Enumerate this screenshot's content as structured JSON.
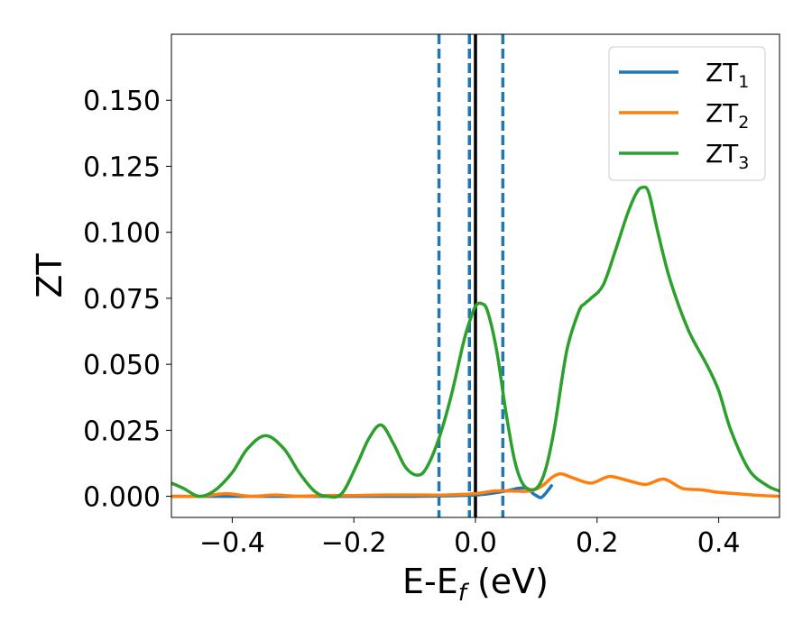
{
  "chart_data": {
    "type": "line",
    "title": "",
    "xlabel": {
      "main": "E-E",
      "sub": "f",
      "tail": " (eV)"
    },
    "ylabel": "ZT",
    "xlim": [
      -0.5,
      0.5
    ],
    "ylim": [
      -0.008,
      0.175
    ],
    "grid": false,
    "legend_position": "top-right",
    "x_ticks": [
      -0.4,
      -0.2,
      0.0,
      0.2,
      0.4
    ],
    "x_tick_labels": [
      "−0.4",
      "−0.2",
      "0.0",
      "0.2",
      "0.4"
    ],
    "y_ticks": [
      0.0,
      0.025,
      0.05,
      0.075,
      0.1,
      0.125,
      0.15
    ],
    "y_tick_labels": [
      "0.000",
      "0.025",
      "0.050",
      "0.075",
      "0.100",
      "0.125",
      "0.150"
    ],
    "vertical_lines": [
      {
        "x": -0.06,
        "style": "dashed",
        "color": "#1f77b4"
      },
      {
        "x": -0.01,
        "style": "dashed",
        "color": "#1f77b4"
      },
      {
        "x": 0.045,
        "style": "dashed",
        "color": "#1f77b4"
      },
      {
        "x": 0.0,
        "style": "solid",
        "color": "#000000"
      }
    ],
    "series": [
      {
        "name": "ZT",
        "name_sub": "1",
        "color": "#1f77b4",
        "x": [
          -0.5,
          -0.45,
          -0.4,
          -0.3,
          -0.2,
          -0.1,
          0.0,
          0.05,
          0.07,
          0.085,
          0.095,
          0.102,
          0.108,
          0.115,
          0.125
        ],
        "y": [
          0.0,
          0.0,
          0.0,
          0.0,
          0.0,
          0.0,
          0.0005,
          0.002,
          0.003,
          0.003,
          0.001,
          0.0,
          -0.0005,
          0.001,
          0.004
        ]
      },
      {
        "name": "ZT",
        "name_sub": "2",
        "color": "#ff7f0e",
        "x": [
          -0.5,
          -0.45,
          -0.41,
          -0.37,
          -0.33,
          -0.29,
          -0.25,
          -0.2,
          -0.15,
          -0.1,
          -0.05,
          0.0,
          0.03,
          0.06,
          0.09,
          0.11,
          0.125,
          0.14,
          0.16,
          0.19,
          0.22,
          0.25,
          0.28,
          0.31,
          0.34,
          0.37,
          0.4,
          0.44,
          0.47,
          0.5
        ],
        "y": [
          0.0,
          0.0,
          0.001,
          0.0,
          0.0005,
          0.0,
          0.0003,
          0.0003,
          0.0005,
          0.0005,
          0.0005,
          0.001,
          0.002,
          0.002,
          0.002,
          0.004,
          0.007,
          0.0085,
          0.007,
          0.005,
          0.0075,
          0.006,
          0.0045,
          0.0065,
          0.003,
          0.0025,
          0.0015,
          0.0008,
          0.0003,
          0.0
        ]
      },
      {
        "name": "ZT",
        "name_sub": "3",
        "color": "#2ca02c",
        "x": [
          -0.5,
          -0.48,
          -0.455,
          -0.43,
          -0.4,
          -0.375,
          -0.345,
          -0.315,
          -0.29,
          -0.265,
          -0.245,
          -0.22,
          -0.195,
          -0.175,
          -0.155,
          -0.135,
          -0.115,
          -0.095,
          -0.08,
          -0.06,
          -0.04,
          -0.02,
          -0.01,
          0.0,
          0.01,
          0.02,
          0.035,
          0.05,
          0.065,
          0.08,
          0.1,
          0.115,
          0.13,
          0.15,
          0.17,
          0.18,
          0.19,
          0.21,
          0.23,
          0.25,
          0.265,
          0.275,
          0.285,
          0.3,
          0.32,
          0.35,
          0.38,
          0.4,
          0.42,
          0.45,
          0.48,
          0.5
        ],
        "y": [
          0.005,
          0.003,
          0.0,
          0.002,
          0.009,
          0.018,
          0.023,
          0.018,
          0.009,
          0.002,
          0.0,
          0.001,
          0.012,
          0.022,
          0.027,
          0.02,
          0.011,
          0.008,
          0.011,
          0.022,
          0.038,
          0.058,
          0.066,
          0.072,
          0.073,
          0.07,
          0.055,
          0.032,
          0.013,
          0.004,
          0.003,
          0.01,
          0.026,
          0.055,
          0.07,
          0.073,
          0.075,
          0.08,
          0.093,
          0.107,
          0.115,
          0.117,
          0.115,
          0.1,
          0.082,
          0.063,
          0.05,
          0.04,
          0.025,
          0.01,
          0.004,
          0.002
        ]
      }
    ]
  }
}
